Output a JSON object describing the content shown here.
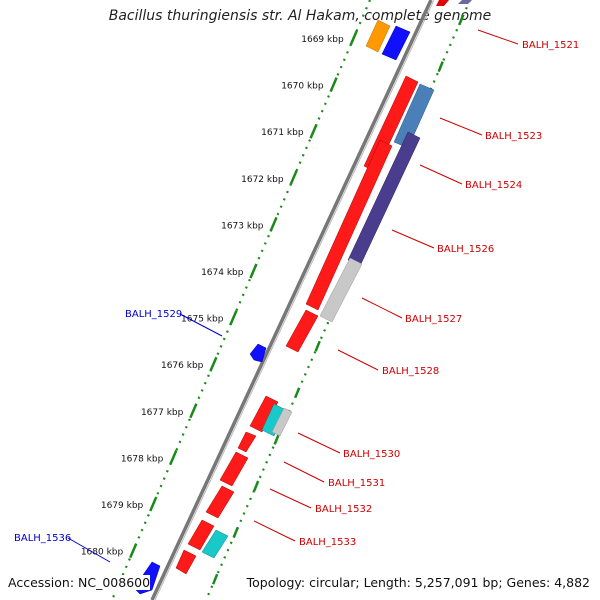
{
  "title": "Bacillus thuringiensis str. Al Hakam, complete genome",
  "footer": {
    "accession": "Accession: NC_008600",
    "summary": "Topology: circular; Length: 5,257,091 bp; Genes: 4,882"
  },
  "ticks": [
    {
      "label": "1669 kbp",
      "kbp": 1669
    },
    {
      "label": "1670 kbp",
      "kbp": 1670
    },
    {
      "label": "1671 kbp",
      "kbp": 1671
    },
    {
      "label": "1672 kbp",
      "kbp": 1672
    },
    {
      "label": "1673 kbp",
      "kbp": 1673
    },
    {
      "label": "1674 kbp",
      "kbp": 1674
    },
    {
      "label": "1675 kbp",
      "kbp": 1675
    },
    {
      "label": "1676 kbp",
      "kbp": 1676
    },
    {
      "label": "1677 kbp",
      "kbp": 1677
    },
    {
      "label": "1678 kbp",
      "kbp": 1678
    },
    {
      "label": "1679 kbp",
      "kbp": 1679
    },
    {
      "label": "1680 kbp",
      "kbp": 1680
    }
  ],
  "gene_labels": [
    {
      "label": "BALH_1521",
      "strand": "forward"
    },
    {
      "label": "BALH_1523",
      "strand": "forward"
    },
    {
      "label": "BALH_1524",
      "strand": "forward"
    },
    {
      "label": "BALH_1526",
      "strand": "forward"
    },
    {
      "label": "BALH_1527",
      "strand": "forward"
    },
    {
      "label": "BALH_1528",
      "strand": "forward"
    },
    {
      "label": "BALH_1530",
      "strand": "forward"
    },
    {
      "label": "BALH_1531",
      "strand": "forward"
    },
    {
      "label": "BALH_1532",
      "strand": "forward"
    },
    {
      "label": "BALH_1533",
      "strand": "forward"
    },
    {
      "label": "BALH_1529",
      "strand": "reverse"
    },
    {
      "label": "BALH_1536",
      "strand": "reverse"
    }
  ],
  "colors": {
    "forward_cds": "#ff0000",
    "reverse_cds": "#0000ff",
    "forward_label": "#cc0000",
    "reverse_label": "#0000cc",
    "backbone": "#808080",
    "tick_dots": "#008000",
    "orange_feature": "#ff9900",
    "steelblue_feature": "#4682b4",
    "darkslate_feature": "#483d8b",
    "grey_feature": "#c0c0c0",
    "teal_feature": "#00c0c0"
  }
}
